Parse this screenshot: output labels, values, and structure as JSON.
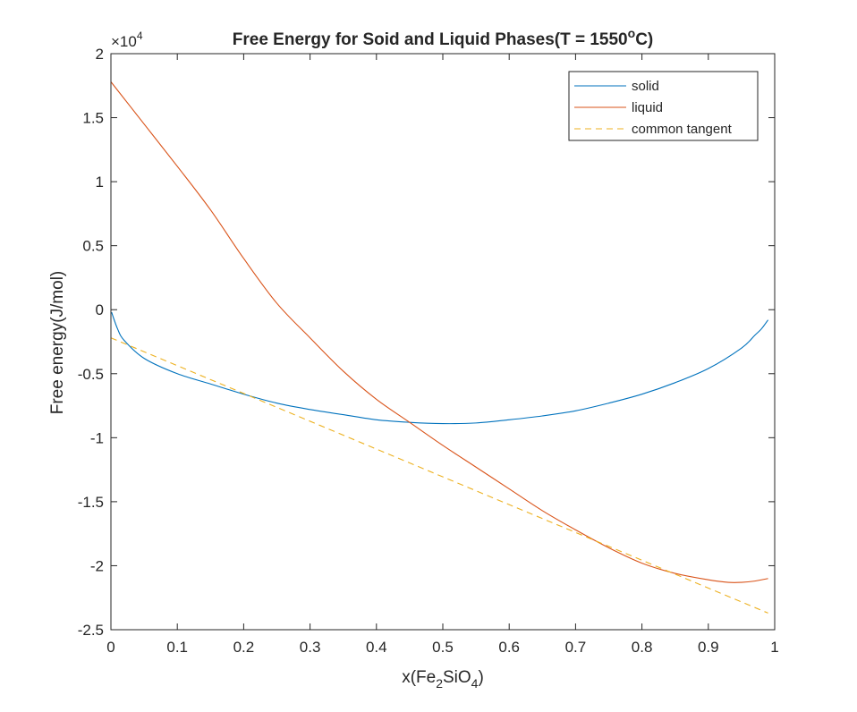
{
  "chart_data": {
    "type": "line",
    "title": {
      "main": "Free Energy for Soid and Liquid Phases(T = 1550",
      "superscript": "o",
      "suffix": "C)"
    },
    "xlabel": {
      "prefix": "x(Fe",
      "sub1": "2",
      "mid": "SiO",
      "sub2": "4",
      "suffix": ")"
    },
    "ylabel": "Free energy(J/mol)",
    "y_exponent": {
      "base": "×10",
      "power": "4"
    },
    "xlim": [
      0,
      1
    ],
    "ylim": [
      -2.5,
      2
    ],
    "x_ticks": [
      0,
      0.1,
      0.2,
      0.3,
      0.4,
      0.5,
      0.6,
      0.7,
      0.8,
      0.9,
      1
    ],
    "x_tick_labels": [
      "0",
      "0.1",
      "0.2",
      "0.3",
      "0.4",
      "0.5",
      "0.6",
      "0.7",
      "0.8",
      "0.9",
      "1"
    ],
    "y_ticks": [
      2,
      1.5,
      1,
      0.5,
      0,
      -0.5,
      -1,
      -1.5,
      -2,
      -2.5
    ],
    "y_tick_labels": [
      "2",
      "1.5",
      "1",
      "0.5",
      "0",
      "-0.5",
      "-1",
      "-1.5",
      "-2",
      "-2.5"
    ],
    "grid": false,
    "legend_position": "top-right",
    "series": [
      {
        "name": "solid",
        "color": "#0072BD",
        "style": "solid",
        "x": [
          0.001,
          0.01,
          0.02,
          0.05,
          0.1,
          0.15,
          0.2,
          0.25,
          0.3,
          0.35,
          0.4,
          0.45,
          0.5,
          0.55,
          0.6,
          0.65,
          0.7,
          0.75,
          0.8,
          0.85,
          0.9,
          0.95,
          0.97,
          0.98,
          0.99
        ],
        "y": [
          -0.02,
          -0.15,
          -0.24,
          -0.38,
          -0.5,
          -0.58,
          -0.66,
          -0.73,
          -0.78,
          -0.82,
          -0.86,
          -0.88,
          -0.89,
          -0.885,
          -0.86,
          -0.83,
          -0.79,
          -0.73,
          -0.66,
          -0.57,
          -0.46,
          -0.3,
          -0.2,
          -0.15,
          -0.08
        ]
      },
      {
        "name": "liquid",
        "color": "#D95319",
        "style": "solid",
        "x": [
          0,
          0.05,
          0.1,
          0.15,
          0.2,
          0.25,
          0.3,
          0.35,
          0.4,
          0.45,
          0.5,
          0.55,
          0.6,
          0.65,
          0.7,
          0.75,
          0.8,
          0.85,
          0.9,
          0.93,
          0.95,
          0.97,
          0.99
        ],
        "y": [
          1.78,
          1.45,
          1.12,
          0.78,
          0.4,
          0.05,
          -0.22,
          -0.48,
          -0.7,
          -0.88,
          -1.06,
          -1.23,
          -1.4,
          -1.57,
          -1.72,
          -1.86,
          -1.98,
          -2.06,
          -2.11,
          -2.13,
          -2.13,
          -2.12,
          -2.1
        ]
      },
      {
        "name": "common tangent",
        "color": "#EDB120",
        "style": "dashed",
        "x": [
          0,
          0.99
        ],
        "y": [
          -0.22,
          -2.37
        ]
      }
    ]
  }
}
